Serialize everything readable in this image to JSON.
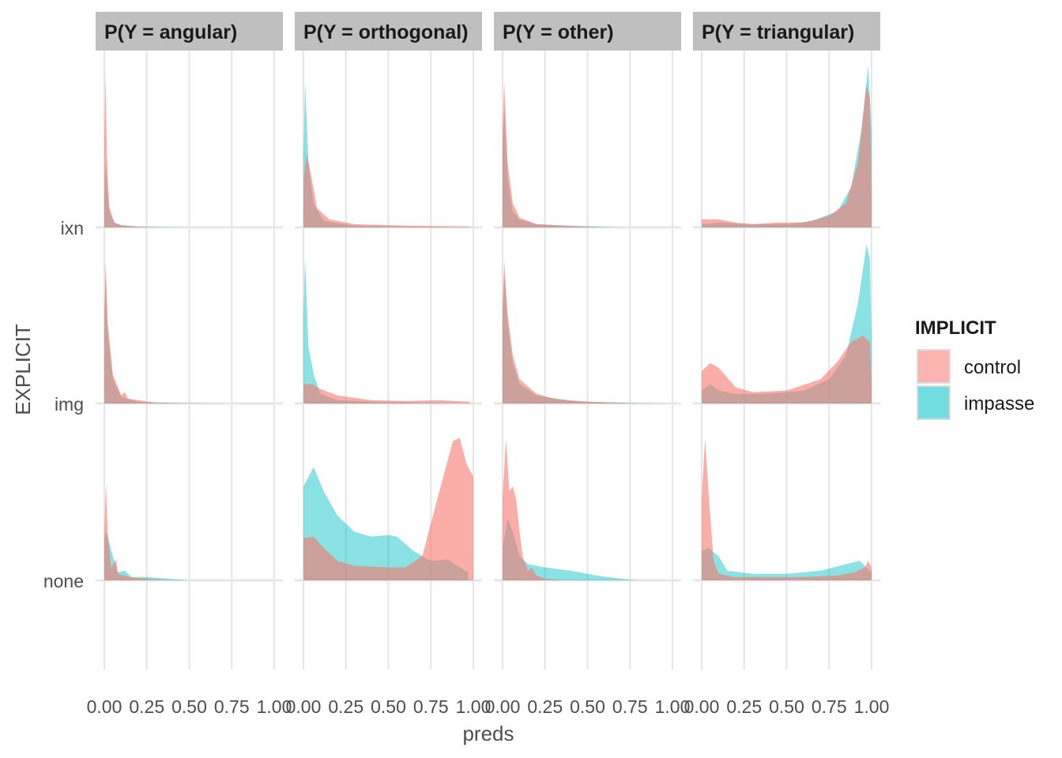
{
  "chart_data": {
    "type": "area",
    "subtype": "faceted ridgeline density",
    "facets": [
      {
        "label": "P(Y = angular)"
      },
      {
        "label": "P(Y = orthogonal)"
      },
      {
        "label": "P(Y = other)"
      },
      {
        "label": "P(Y = triangular)"
      }
    ],
    "rows": [
      "ixn",
      "img",
      "none"
    ],
    "xlabel": "preds",
    "ylabel": "EXPLICIT",
    "x_ticks": [
      "0.00",
      "0.25",
      "0.50",
      "0.75",
      "1.00"
    ],
    "xlim": [
      0,
      1
    ],
    "grid": true,
    "legend": {
      "title": "IMPLICIT",
      "position": "right",
      "items": [
        {
          "label": "control",
          "color": "#F8766D"
        },
        {
          "label": "impasse",
          "color": "#00BFC4"
        }
      ]
    },
    "series_colors": {
      "control": "#F8766D",
      "impasse": "#00BFC4"
    },
    "densities": {
      "P(Y = angular)": {
        "ixn": {
          "control": [
            [
              0,
              0.55
            ],
            [
              0.008,
              0.95
            ],
            [
              0.015,
              0.45
            ],
            [
              0.03,
              0.12
            ],
            [
              0.06,
              0.03
            ],
            [
              0.1,
              0.01
            ],
            [
              0.2,
              0.005
            ],
            [
              0.3,
              0
            ]
          ],
          "impasse": [
            [
              0,
              0.2
            ],
            [
              0.008,
              0.4
            ],
            [
              0.02,
              0.2
            ],
            [
              0.035,
              0.08
            ],
            [
              0.06,
              0.03
            ],
            [
              0.1,
              0.015
            ],
            [
              0.2,
              0.005
            ],
            [
              0.5,
              0
            ]
          ]
        },
        "img": {
          "control": [
            [
              0,
              0.55
            ],
            [
              0.008,
              0.88
            ],
            [
              0.02,
              0.5
            ],
            [
              0.05,
              0.18
            ],
            [
              0.1,
              0.05
            ],
            [
              0.12,
              0.07
            ],
            [
              0.14,
              0.03
            ],
            [
              0.3,
              0.005
            ],
            [
              0.6,
              0
            ]
          ],
          "impasse": [
            [
              0,
              0.4
            ],
            [
              0.008,
              0.8
            ],
            [
              0.02,
              0.45
            ],
            [
              0.05,
              0.15
            ],
            [
              0.1,
              0.04
            ],
            [
              0.2,
              0.01
            ],
            [
              0.4,
              0.003
            ],
            [
              0.7,
              0
            ]
          ]
        },
        "none": {
          "control": [
            [
              0,
              0.3
            ],
            [
              0.01,
              0.6
            ],
            [
              0.02,
              0.3
            ],
            [
              0.04,
              0.08
            ],
            [
              0.07,
              0.13
            ],
            [
              0.08,
              0.04
            ],
            [
              0.15,
              0.02
            ],
            [
              0.3,
              0.005
            ],
            [
              0.4,
              0
            ]
          ],
          "impasse": [
            [
              0,
              0.25
            ],
            [
              0.01,
              0.3
            ],
            [
              0.025,
              0.25
            ],
            [
              0.05,
              0.15
            ],
            [
              0.08,
              0.05
            ],
            [
              0.12,
              0.06
            ],
            [
              0.16,
              0.02
            ],
            [
              0.25,
              0.02
            ],
            [
              0.5,
              0
            ]
          ]
        }
      },
      "P(Y = orthogonal)": {
        "ixn": {
          "control": [
            [
              0,
              0.3
            ],
            [
              0.02,
              0.45
            ],
            [
              0.04,
              0.35
            ],
            [
              0.08,
              0.12
            ],
            [
              0.15,
              0.05
            ],
            [
              0.3,
              0.02
            ],
            [
              0.6,
              0.01
            ],
            [
              0.98,
              0.005
            ]
          ],
          "impasse": [
            [
              0,
              0.45
            ],
            [
              0.01,
              0.9
            ],
            [
              0.03,
              0.4
            ],
            [
              0.06,
              0.15
            ],
            [
              0.12,
              0.04
            ],
            [
              0.3,
              0.01
            ],
            [
              0.7,
              0.005
            ],
            [
              0.98,
              0
            ]
          ]
        },
        "img": {
          "control": [
            [
              0,
              0.12
            ],
            [
              0.05,
              0.12
            ],
            [
              0.1,
              0.09
            ],
            [
              0.2,
              0.05
            ],
            [
              0.4,
              0.02
            ],
            [
              0.6,
              0.015
            ],
            [
              0.8,
              0.02
            ],
            [
              0.98,
              0.01
            ]
          ],
          "impasse": [
            [
              0,
              0.55
            ],
            [
              0.01,
              0.9
            ],
            [
              0.03,
              0.35
            ],
            [
              0.06,
              0.18
            ],
            [
              0.1,
              0.06
            ],
            [
              0.2,
              0.02
            ],
            [
              0.4,
              0.01
            ],
            [
              0.98,
              0
            ]
          ]
        },
        "none": {
          "control": [
            [
              0,
              0.26
            ],
            [
              0.06,
              0.27
            ],
            [
              0.12,
              0.2
            ],
            [
              0.2,
              0.12
            ],
            [
              0.3,
              0.09
            ],
            [
              0.5,
              0.08
            ],
            [
              0.6,
              0.08
            ],
            [
              0.7,
              0.15
            ],
            [
              0.8,
              0.55
            ],
            [
              0.88,
              0.86
            ],
            [
              0.92,
              0.88
            ],
            [
              0.96,
              0.72
            ],
            [
              1.0,
              0.64
            ],
            [
              1.0,
              0
            ]
          ],
          "impasse": [
            [
              0,
              0.58
            ],
            [
              0.06,
              0.7
            ],
            [
              0.12,
              0.55
            ],
            [
              0.2,
              0.4
            ],
            [
              0.3,
              0.3
            ],
            [
              0.4,
              0.27
            ],
            [
              0.5,
              0.28
            ],
            [
              0.55,
              0.27
            ],
            [
              0.65,
              0.18
            ],
            [
              0.75,
              0.12
            ],
            [
              0.85,
              0.13
            ],
            [
              0.92,
              0.08
            ],
            [
              0.97,
              0.05
            ],
            [
              0.97,
              0
            ]
          ]
        }
      },
      "P(Y = other)": {
        "ixn": {
          "control": [
            [
              0,
              0.6
            ],
            [
              0.01,
              0.9
            ],
            [
              0.03,
              0.4
            ],
            [
              0.06,
              0.15
            ],
            [
              0.1,
              0.06
            ],
            [
              0.2,
              0.02
            ],
            [
              0.35,
              0.01
            ],
            [
              0.6,
              0
            ]
          ],
          "impasse": [
            [
              0,
              0.45
            ],
            [
              0.01,
              0.75
            ],
            [
              0.03,
              0.3
            ],
            [
              0.06,
              0.1
            ],
            [
              0.1,
              0.05
            ],
            [
              0.2,
              0.02
            ],
            [
              0.4,
              0.01
            ],
            [
              0.7,
              0
            ]
          ]
        },
        "img": {
          "control": [
            [
              0,
              0.6
            ],
            [
              0.01,
              0.88
            ],
            [
              0.03,
              0.55
            ],
            [
              0.06,
              0.3
            ],
            [
              0.1,
              0.15
            ],
            [
              0.2,
              0.06
            ],
            [
              0.3,
              0.03
            ],
            [
              0.5,
              0.01
            ],
            [
              0.8,
              0
            ]
          ],
          "impasse": [
            [
              0,
              0.5
            ],
            [
              0.01,
              0.8
            ],
            [
              0.03,
              0.5
            ],
            [
              0.06,
              0.25
            ],
            [
              0.1,
              0.12
            ],
            [
              0.2,
              0.05
            ],
            [
              0.4,
              0.015
            ],
            [
              0.7,
              0.005
            ],
            [
              0.95,
              0
            ]
          ]
        },
        "none": {
          "control": [
            [
              0,
              0.5
            ],
            [
              0.02,
              0.88
            ],
            [
              0.04,
              0.55
            ],
            [
              0.06,
              0.58
            ],
            [
              0.08,
              0.5
            ],
            [
              0.1,
              0.3
            ],
            [
              0.12,
              0.14
            ],
            [
              0.15,
              0.06
            ],
            [
              0.17,
              0.08
            ],
            [
              0.2,
              0.03
            ],
            [
              0.25,
              0.01
            ],
            [
              0.35,
              0
            ]
          ],
          "impasse": [
            [
              0,
              0.2
            ],
            [
              0.03,
              0.38
            ],
            [
              0.06,
              0.3
            ],
            [
              0.1,
              0.15
            ],
            [
              0.15,
              0.1
            ],
            [
              0.25,
              0.08
            ],
            [
              0.4,
              0.06
            ],
            [
              0.55,
              0.03
            ],
            [
              0.7,
              0.01
            ],
            [
              0.8,
              0
            ]
          ]
        }
      },
      "P(Y = triangular)": {
        "ixn": {
          "control": [
            [
              0,
              0.05
            ],
            [
              0.1,
              0.05
            ],
            [
              0.2,
              0.03
            ],
            [
              0.3,
              0.02
            ],
            [
              0.45,
              0.03
            ],
            [
              0.6,
              0.03
            ],
            [
              0.75,
              0.07
            ],
            [
              0.85,
              0.15
            ],
            [
              0.92,
              0.4
            ],
            [
              0.97,
              0.88
            ],
            [
              0.99,
              0.8
            ],
            [
              1.0,
              0.2
            ],
            [
              1.0,
              0
            ]
          ],
          "impasse": [
            [
              0,
              0.02
            ],
            [
              0.1,
              0.03
            ],
            [
              0.3,
              0.02
            ],
            [
              0.5,
              0.02
            ],
            [
              0.65,
              0.04
            ],
            [
              0.8,
              0.1
            ],
            [
              0.88,
              0.25
            ],
            [
              0.94,
              0.6
            ],
            [
              0.98,
              1.0
            ],
            [
              1.0,
              0.6
            ],
            [
              1.0,
              0
            ]
          ]
        },
        "img": {
          "control": [
            [
              0,
              0.2
            ],
            [
              0.05,
              0.25
            ],
            [
              0.1,
              0.22
            ],
            [
              0.2,
              0.1
            ],
            [
              0.3,
              0.07
            ],
            [
              0.5,
              0.08
            ],
            [
              0.7,
              0.15
            ],
            [
              0.8,
              0.26
            ],
            [
              0.88,
              0.38
            ],
            [
              0.95,
              0.42
            ],
            [
              0.99,
              0.38
            ],
            [
              1.0,
              0.1
            ],
            [
              1.0,
              0
            ]
          ],
          "impasse": [
            [
              0,
              0.08
            ],
            [
              0.05,
              0.12
            ],
            [
              0.1,
              0.08
            ],
            [
              0.2,
              0.06
            ],
            [
              0.4,
              0.06
            ],
            [
              0.6,
              0.08
            ],
            [
              0.75,
              0.15
            ],
            [
              0.85,
              0.3
            ],
            [
              0.92,
              0.62
            ],
            [
              0.97,
              0.98
            ],
            [
              0.99,
              0.9
            ],
            [
              1.0,
              0.4
            ],
            [
              1.0,
              0
            ]
          ]
        },
        "none": {
          "control": [
            [
              0,
              0.5
            ],
            [
              0.02,
              0.88
            ],
            [
              0.04,
              0.55
            ],
            [
              0.07,
              0.12
            ],
            [
              0.1,
              0.04
            ],
            [
              0.2,
              0.02
            ],
            [
              0.4,
              0.02
            ],
            [
              0.6,
              0.02
            ],
            [
              0.8,
              0.03
            ],
            [
              0.9,
              0.05
            ],
            [
              0.96,
              0.08
            ],
            [
              0.98,
              0.12
            ],
            [
              1.0,
              0.08
            ],
            [
              1.0,
              0
            ]
          ],
          "impasse": [
            [
              0,
              0.18
            ],
            [
              0.04,
              0.2
            ],
            [
              0.1,
              0.15
            ],
            [
              0.15,
              0.06
            ],
            [
              0.3,
              0.04
            ],
            [
              0.5,
              0.04
            ],
            [
              0.7,
              0.06
            ],
            [
              0.85,
              0.1
            ],
            [
              0.93,
              0.12
            ],
            [
              0.97,
              0.08
            ],
            [
              1.0,
              0.05
            ],
            [
              1.0,
              0
            ]
          ]
        }
      }
    }
  }
}
